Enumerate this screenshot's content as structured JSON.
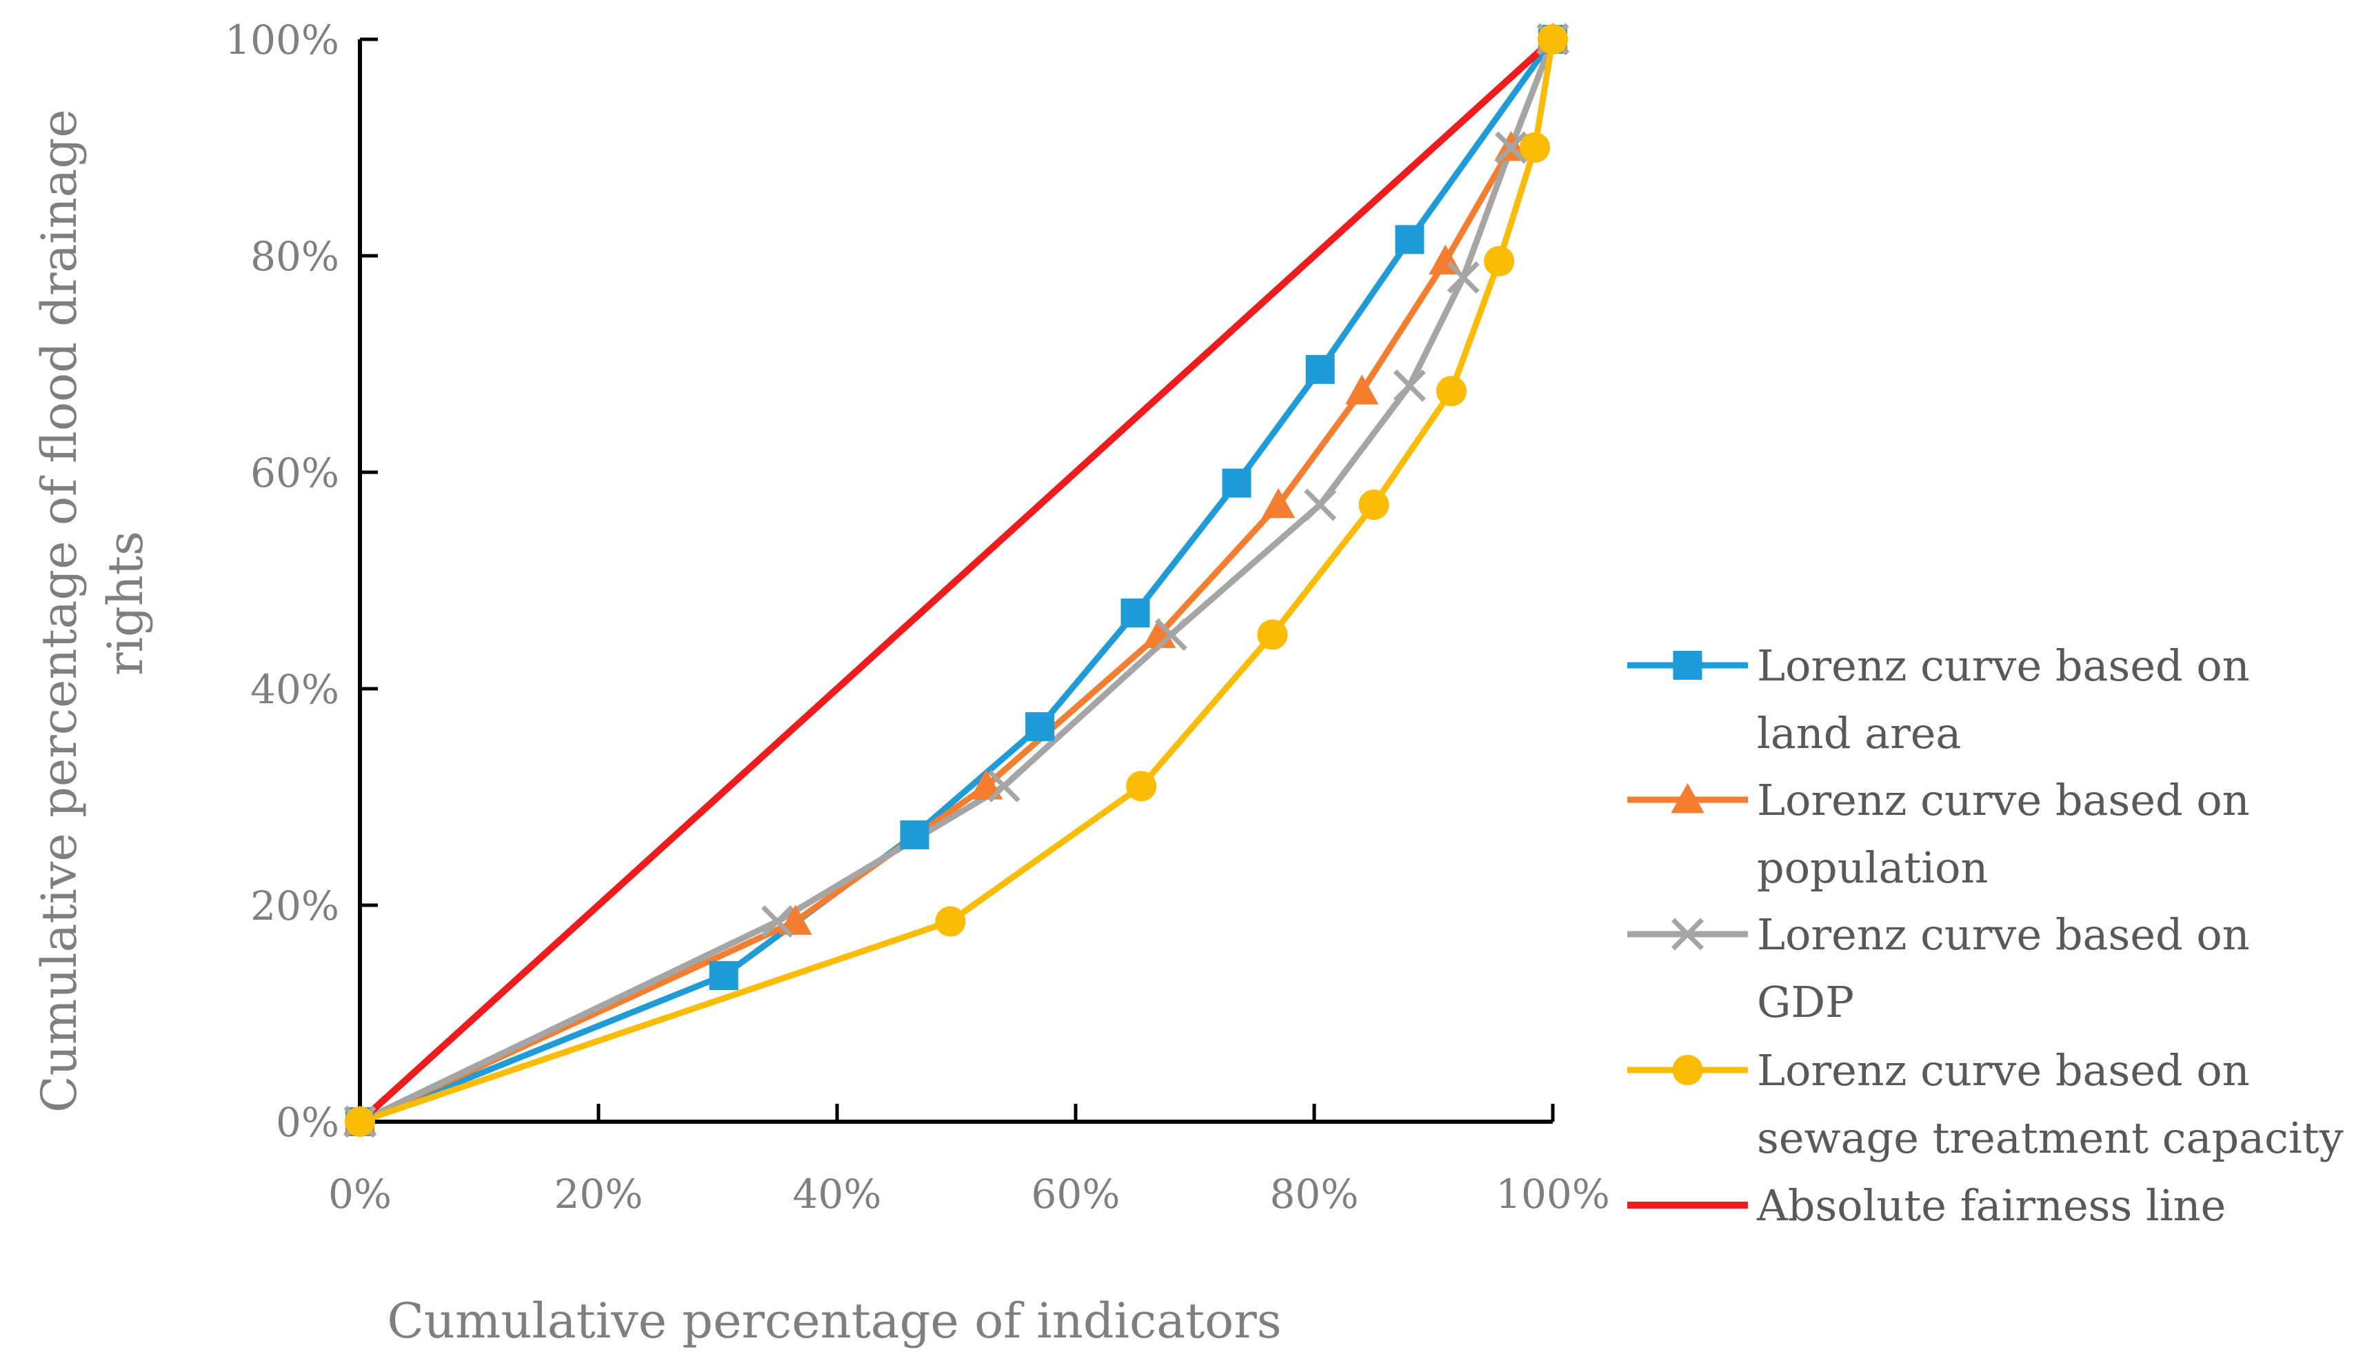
{
  "chart_data": {
    "type": "line",
    "xlabel": "Cumulative percentage of indicators",
    "ylabel_lines": [
      "Cumulative percentage of flood drainage",
      "rights"
    ],
    "xlim": [
      0,
      100
    ],
    "ylim": [
      0,
      100
    ],
    "x_ticks": [
      0,
      20,
      40,
      60,
      80,
      100
    ],
    "y_ticks": [
      0,
      20,
      40,
      60,
      80,
      100
    ],
    "x_tick_labels": [
      "0%",
      "20%",
      "40%",
      "60%",
      "80%",
      "100%"
    ],
    "y_tick_labels": [
      "0%",
      "20%",
      "40%",
      "60%",
      "80%",
      "100%"
    ],
    "grid": false,
    "legend_position": "right",
    "series": [
      {
        "name_lines": [
          "Lorenz curve based on",
          "land area"
        ],
        "color": "#1f9bd7",
        "marker": "square",
        "x": [
          0,
          30.5,
          46.5,
          57,
          65,
          73.5,
          80.5,
          88,
          100
        ],
        "y": [
          0,
          13.5,
          26.5,
          36.5,
          47,
          59,
          69.5,
          81.5,
          100
        ]
      },
      {
        "name_lines": [
          "Lorenz curve based on",
          "population"
        ],
        "color": "#f47d2f",
        "marker": "triangle",
        "x": [
          0,
          36.5,
          52.5,
          67,
          77,
          84,
          91,
          96.5,
          100
        ],
        "y": [
          0,
          18.5,
          31,
          45,
          57,
          67.5,
          79.5,
          90,
          100
        ]
      },
      {
        "name_lines": [
          "Lorenz curve based on",
          "GDP"
        ],
        "color": "#a5a5a5",
        "marker": "x",
        "x": [
          0,
          35,
          54,
          68,
          80.5,
          88,
          92.5,
          96.5,
          100
        ],
        "y": [
          0,
          18.5,
          31,
          45,
          57,
          68,
          78,
          90,
          100
        ]
      },
      {
        "name_lines": [
          "Lorenz curve based on",
          "sewage treatment capacity"
        ],
        "color": "#fbbc05",
        "marker": "circle",
        "x": [
          0,
          49.5,
          65.5,
          76.5,
          85,
          91.5,
          95.5,
          98.5,
          100
        ],
        "y": [
          0,
          18.5,
          31,
          45,
          57,
          67.5,
          79.5,
          90,
          100
        ]
      },
      {
        "name_lines": [
          "Absolute fairness line"
        ],
        "color": "#ee1c1c",
        "marker": "none",
        "x": [
          0,
          100
        ],
        "y": [
          0,
          100
        ]
      }
    ]
  }
}
